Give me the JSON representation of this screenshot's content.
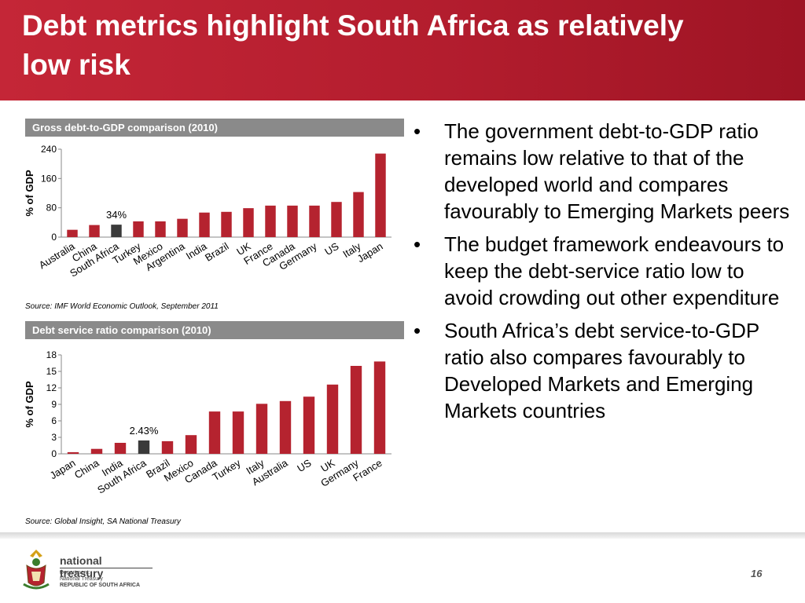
{
  "slide": {
    "title": "Debt metrics highlight South Africa as relatively low risk",
    "page_number": "16"
  },
  "bullets": [
    "The government debt-to-GDP ratio remains low relative to that of the developed world and compares favourably to Emerging Markets peers",
    "The budget framework endeavours to keep the debt-service ratio low to avoid crowding out other expenditure",
    "South Africa’s debt service-to-GDP ratio also compares favourably to Developed Markets and Emerging Markets countries"
  ],
  "footer": {
    "logo_name": "national treasury",
    "logo_sub1": "Department:",
    "logo_sub2": "National Treasury",
    "logo_sub3": "REPUBLIC OF SOUTH AFRICA"
  },
  "colors": {
    "bar": "#b5232f",
    "highlight": "#3a3a3a",
    "header": "#b31d2e"
  },
  "chart_data": [
    {
      "type": "bar",
      "title": "Gross debt-to-GDP comparison (2010)",
      "ylabel": "% of GDP",
      "xlabel": "",
      "ylim": [
        0,
        240
      ],
      "yticks": [
        0,
        80,
        160,
        240
      ],
      "categories": [
        "Australia",
        "China",
        "South Africa",
        "Turkey",
        "Mexico",
        "Argentina",
        "India",
        "Brazil",
        "UK",
        "France",
        "Canada",
        "Germany",
        "US",
        "Italy",
        "Japan"
      ],
      "values": [
        20,
        33,
        34,
        43,
        43,
        50,
        67,
        69,
        79,
        86,
        86,
        86,
        96,
        123,
        228
      ],
      "highlight": "South Africa",
      "annotation": "34%",
      "source": "Source: IMF World Economic Outlook, September 2011",
      "grid": false
    },
    {
      "type": "bar",
      "title": "Debt service ratio comparison (2010)",
      "ylabel": "% of GDP",
      "xlabel": "",
      "ylim": [
        0,
        18
      ],
      "yticks": [
        0,
        3,
        6,
        9,
        12,
        15,
        18
      ],
      "categories": [
        "Japan",
        "China",
        "India",
        "South Africa",
        "Brazil",
        "Mexico",
        "Canada",
        "Turkey",
        "Italy",
        "Australia",
        "US",
        "UK",
        "Germany",
        "France"
      ],
      "values": [
        0.3,
        0.9,
        2.0,
        2.43,
        2.3,
        3.4,
        7.7,
        7.7,
        9.1,
        9.6,
        10.4,
        12.6,
        16.0,
        16.8
      ],
      "highlight": "South Africa",
      "annotation": "2.43%",
      "source": "Source: Global Insight, SA National Treasury",
      "grid": false
    }
  ]
}
